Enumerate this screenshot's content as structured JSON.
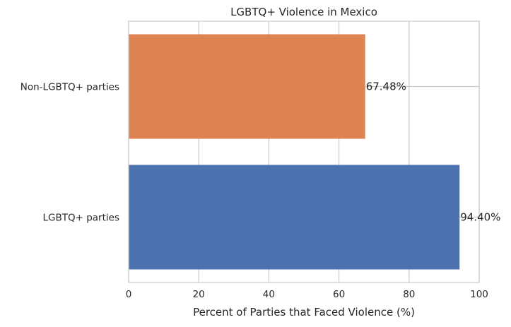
{
  "chart_data": {
    "type": "bar",
    "orientation": "horizontal",
    "title": "LGBTQ+ Violence in Mexico",
    "xlabel": "Percent of Parties that Faced Violence (%)",
    "ylabel": "",
    "xlim": [
      0,
      100
    ],
    "xticks": [
      0,
      20,
      40,
      60,
      80,
      100
    ],
    "categories": [
      "Non-LGBTQ+ parties",
      "LGBTQ+ parties"
    ],
    "values": [
      67.48,
      94.4
    ],
    "data_labels": [
      "67.48%",
      "94.40%"
    ],
    "colors": [
      "#dd8452",
      "#4c72b0"
    ],
    "grid": true
  }
}
